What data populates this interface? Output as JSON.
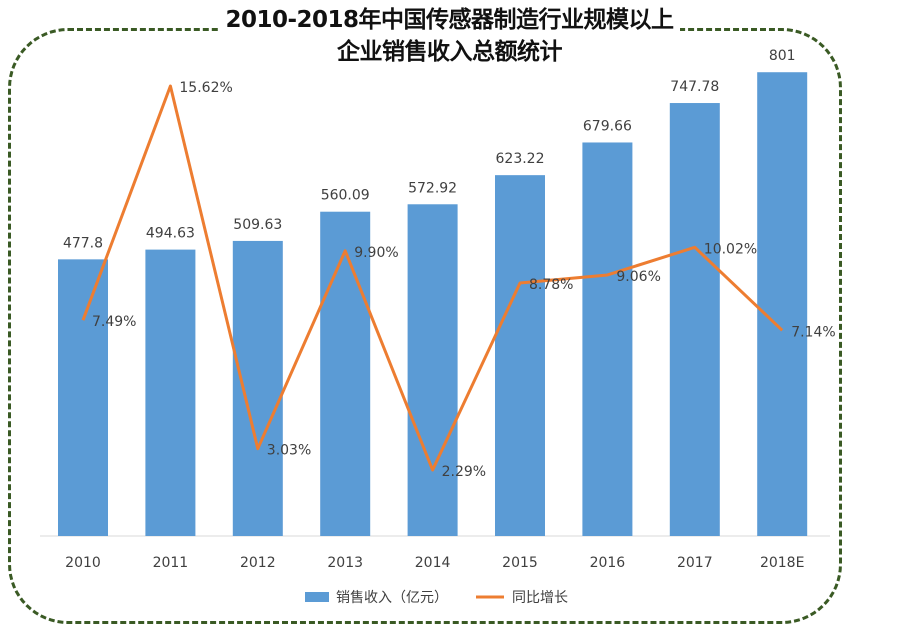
{
  "chart_data": {
    "type": "bar+line",
    "title_lines": [
      "2010-2018年中国传感器制造行业规模以上",
      "企业销售收入总额统计"
    ],
    "categories": [
      "2010",
      "2011",
      "2012",
      "2013",
      "2014",
      "2015",
      "2016",
      "2017",
      "2018E"
    ],
    "series": [
      {
        "name": "销售收入（亿元）",
        "kind": "bar",
        "color": "#5b9bd5",
        "values": [
          477.8,
          494.63,
          509.63,
          560.09,
          572.92,
          623.22,
          679.66,
          747.78,
          801
        ],
        "labels": [
          "477.8",
          "494.63",
          "509.63",
          "560.09",
          "572.92",
          "623.22",
          "679.66",
          "747.78",
          "801"
        ]
      },
      {
        "name": "同比增长",
        "kind": "line",
        "color": "#ed7d31",
        "values": [
          7.49,
          15.62,
          3.03,
          9.9,
          2.29,
          8.78,
          9.06,
          10.02,
          7.14
        ],
        "labels": [
          "7.49%",
          "15.62%",
          "3.03%",
          "9.90%",
          "2.29%",
          "8.78%",
          "9.06%",
          "10.02%",
          "7.14%"
        ]
      }
    ],
    "legend_position": "bottom",
    "grid": false,
    "frame_color": "#3a5a24"
  }
}
